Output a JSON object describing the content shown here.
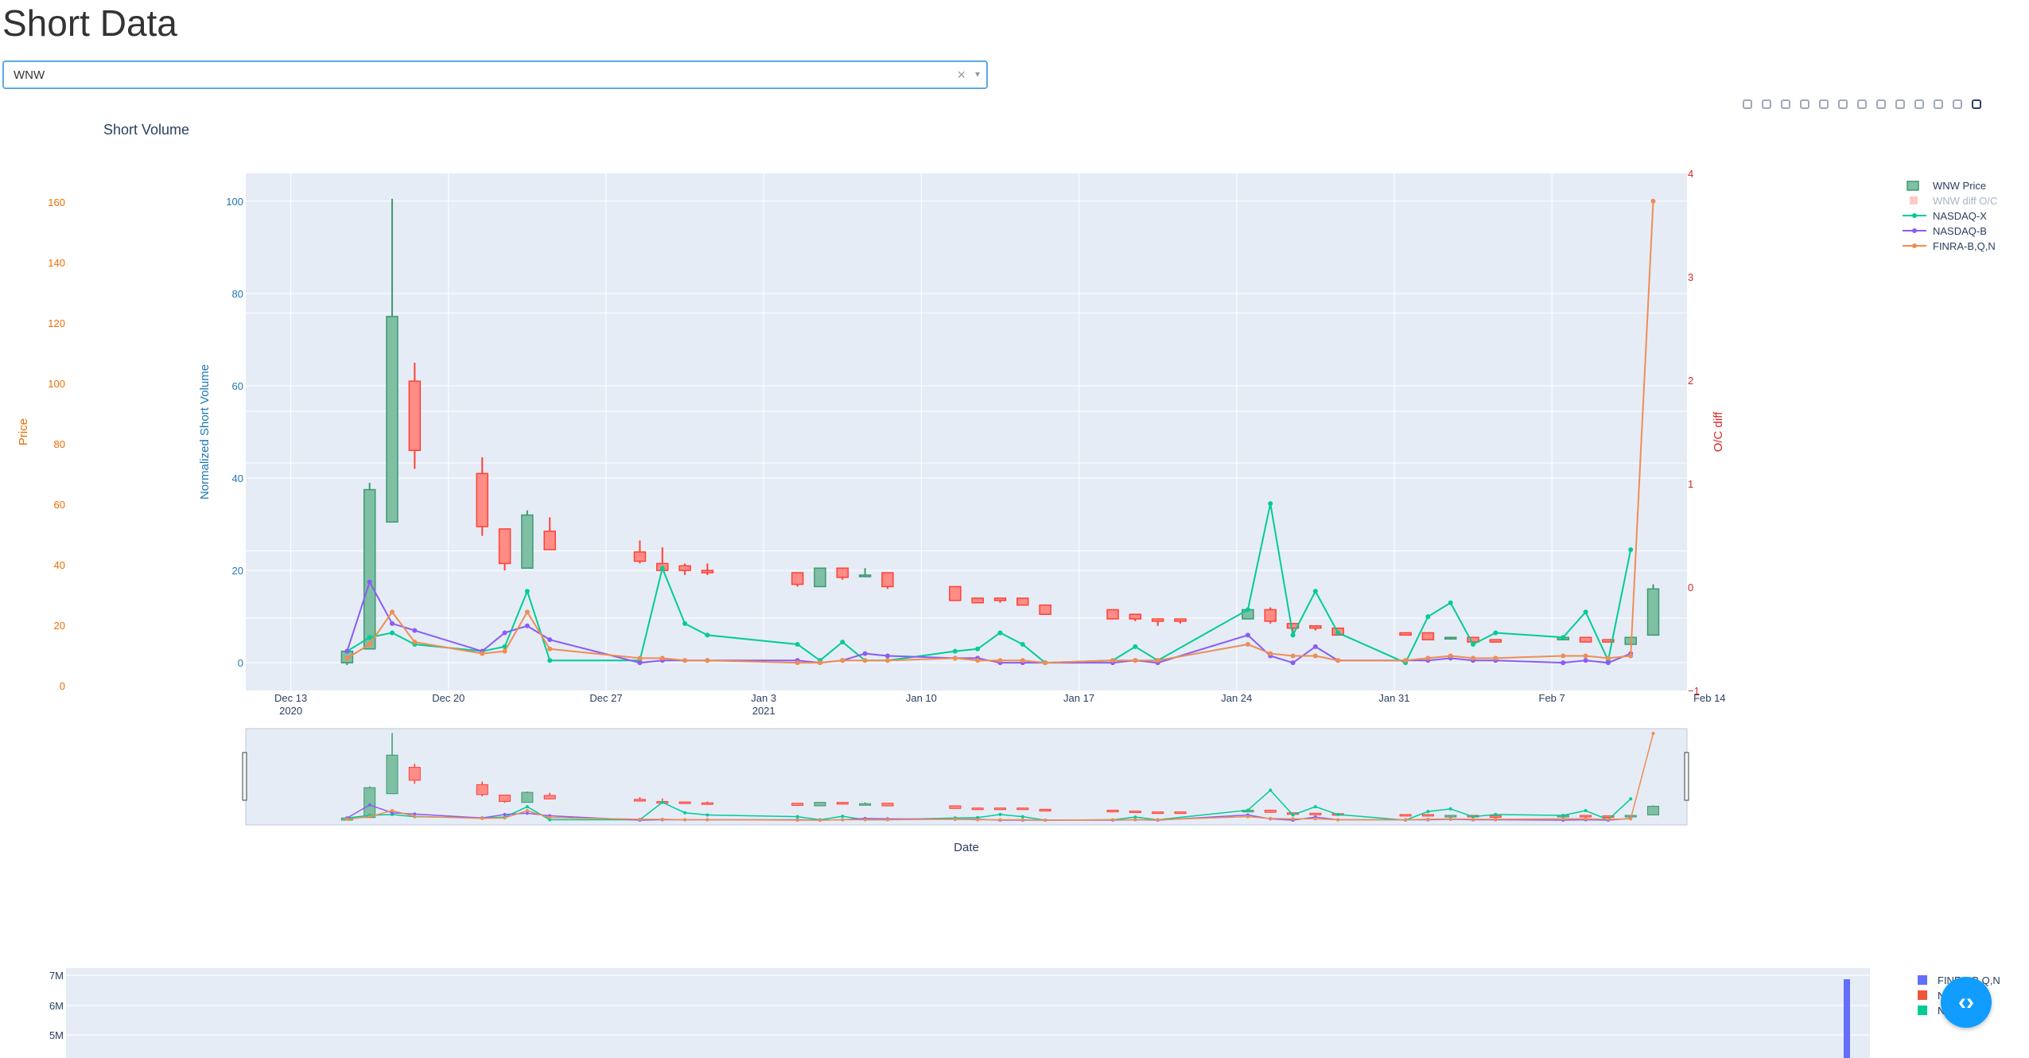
{
  "page": {
    "title": "Short Data"
  },
  "ticker_select": {
    "value": "WNW",
    "clear_icon": "×",
    "arrow_icon": "▾"
  },
  "modebar": [
    "camera-icon",
    "zoom-icon",
    "pan-icon",
    "box-select-icon",
    "lasso-select-icon",
    "zoom-in-icon",
    "zoom-out-icon",
    "autoscale-icon",
    "reset-axes-icon",
    "spike-lines-icon",
    "hover-closest-icon",
    "hover-compare-icon",
    "plotly-logo-icon"
  ],
  "chart_data": [
    {
      "type": "line",
      "title": "Short Volume",
      "xlabel": "Date",
      "ylabel": "Normalized Short Volume",
      "y2label": "Price",
      "y3label": "O/C diff",
      "xticks": [
        "Dec 13\n2020",
        "Dec 20",
        "Dec 27",
        "Jan 3\n2021",
        "Jan 10",
        "Jan 17",
        "Jan 24",
        "Jan 31",
        "Feb 7",
        "Feb 14"
      ],
      "ylim": [
        -6,
        106
      ],
      "yticks": [
        0,
        20,
        40,
        60,
        80,
        100
      ],
      "price_ylim": [
        -6,
        176
      ],
      "price_ticks": [
        0,
        20,
        40,
        60,
        80,
        100,
        120,
        140,
        160
      ],
      "ocdiff_ylim": [
        -1,
        4
      ],
      "ocdiff_ticks": [
        -1,
        0,
        1,
        2,
        3,
        4
      ],
      "legend": [
        "WNW Price",
        "WNW diff O/C",
        "NASDAQ-X",
        "NASDAQ-B",
        "FINRA-B,Q,N"
      ],
      "colors": {
        "up": "#3d9970",
        "down": "#ff4136",
        "nasdaq_x": "#00cc96",
        "nasdaq_b": "#8a5cf6",
        "finra": "#ef8d53",
        "grid_bg": "#e5ecf6"
      },
      "candles": [
        {
          "d": 2.5,
          "o": 0,
          "c": 2.5,
          "h": 3,
          "l": -0.5
        },
        {
          "d": 3.5,
          "o": 3,
          "c": 37.5,
          "h": 39,
          "l": 3
        },
        {
          "d": 4.5,
          "o": 30.5,
          "c": 75,
          "h": 100.5,
          "l": 30.5
        },
        {
          "d": 5.5,
          "o": 61,
          "c": 46,
          "h": 65,
          "l": 42
        },
        {
          "d": 8.5,
          "o": 41,
          "c": 29.5,
          "h": 44.5,
          "l": 27.5
        },
        {
          "d": 9.5,
          "o": 29,
          "c": 21.5,
          "h": 29,
          "l": 20
        },
        {
          "d": 10.5,
          "o": 20.5,
          "c": 32,
          "h": 33,
          "l": 20.5
        },
        {
          "d": 11.5,
          "o": 28.5,
          "c": 24.5,
          "h": 31.5,
          "l": 24.5
        },
        {
          "d": 15.5,
          "o": 24,
          "c": 22,
          "h": 26.5,
          "l": 21.5
        },
        {
          "d": 16.5,
          "o": 21.5,
          "c": 20,
          "h": 25,
          "l": 20
        },
        {
          "d": 17.5,
          "o": 21,
          "c": 20,
          "h": 21.5,
          "l": 19
        },
        {
          "d": 18.5,
          "o": 20,
          "c": 19.5,
          "h": 21.5,
          "l": 19
        },
        {
          "d": 22.5,
          "o": 19.5,
          "c": 17,
          "h": 19.5,
          "l": 16.5
        },
        {
          "d": 23.5,
          "o": 16.5,
          "c": 20.5,
          "h": 20.5,
          "l": 16.5
        },
        {
          "d": 24.5,
          "o": 20.5,
          "c": 18.5,
          "h": 20.5,
          "l": 18
        },
        {
          "d": 25.5,
          "o": 19,
          "c": 19,
          "h": 20.5,
          "l": 18.5
        },
        {
          "d": 26.5,
          "o": 19.5,
          "c": 16.5,
          "h": 19.5,
          "l": 16
        },
        {
          "d": 29.5,
          "o": 16.5,
          "c": 13.5,
          "h": 16.5,
          "l": 13.5
        },
        {
          "d": 30.5,
          "o": 14,
          "c": 13,
          "h": 14,
          "l": 13
        },
        {
          "d": 31.5,
          "o": 14,
          "c": 13.5,
          "h": 14,
          "l": 13
        },
        {
          "d": 32.5,
          "o": 14,
          "c": 12.5,
          "h": 14,
          "l": 12.5
        },
        {
          "d": 33.5,
          "o": 12.5,
          "c": 10.5,
          "h": 12.5,
          "l": 10.5
        },
        {
          "d": 36.5,
          "o": 11.5,
          "c": 9.5,
          "h": 11.5,
          "l": 9.5
        },
        {
          "d": 37.5,
          "o": 10.5,
          "c": 9.5,
          "h": 10.5,
          "l": 9
        },
        {
          "d": 38.5,
          "o": 9.5,
          "c": 9,
          "h": 9.5,
          "l": 8
        },
        {
          "d": 39.5,
          "o": 9.5,
          "c": 9,
          "h": 9.5,
          "l": 8.5
        },
        {
          "d": 42.5,
          "o": 9.5,
          "c": 11.5,
          "h": 12,
          "l": 9.5
        },
        {
          "d": 43.5,
          "o": 11.5,
          "c": 9,
          "h": 12,
          "l": 8.5
        },
        {
          "d": 44.5,
          "o": 8.5,
          "c": 7.5,
          "h": 8.5,
          "l": 6.5
        },
        {
          "d": 45.5,
          "o": 8,
          "c": 7.5,
          "h": 8,
          "l": 7
        },
        {
          "d": 46.5,
          "o": 7.5,
          "c": 6,
          "h": 7.5,
          "l": 6
        },
        {
          "d": 49.5,
          "o": 6.5,
          "c": 6,
          "h": 6.5,
          "l": 6
        },
        {
          "d": 50.5,
          "o": 6.5,
          "c": 5,
          "h": 6.5,
          "l": 5
        },
        {
          "d": 51.5,
          "o": 5.5,
          "c": 5.5,
          "h": 5.5,
          "l": 5
        },
        {
          "d": 52.5,
          "o": 5.5,
          "c": 4.5,
          "h": 5.5,
          "l": 4.5
        },
        {
          "d": 53.5,
          "o": 5,
          "c": 4.5,
          "h": 5,
          "l": 4.5
        },
        {
          "d": 56.5,
          "o": 5,
          "c": 5.5,
          "h": 5.5,
          "l": 5
        },
        {
          "d": 57.5,
          "o": 5.5,
          "c": 4.5,
          "h": 5.5,
          "l": 4.5
        },
        {
          "d": 58.5,
          "o": 5,
          "c": 4.5,
          "h": 5,
          "l": 4.5
        },
        {
          "d": 59.5,
          "o": 4,
          "c": 5.5,
          "h": 5.5,
          "l": 4
        },
        {
          "d": 60.5,
          "o": 6,
          "c": 16,
          "h": 17,
          "l": 6
        }
      ],
      "series": [
        {
          "name": "NASDAQ-X",
          "x": [
            2.5,
            3.5,
            4.5,
            5.5,
            8.5,
            9.5,
            10.5,
            11.5,
            15.5,
            16.5,
            17.5,
            18.5,
            22.5,
            23.5,
            24.5,
            25.5,
            26.5,
            29.5,
            30.5,
            31.5,
            32.5,
            33.5,
            36.5,
            37.5,
            38.5,
            42.5,
            43.5,
            44.5,
            45.5,
            46.5,
            49.5,
            50.5,
            51.5,
            52.5,
            53.5,
            56.5,
            57.5,
            58.5,
            59.5
          ],
          "y": [
            2.5,
            5.5,
            6.5,
            4,
            2.5,
            3.5,
            15.5,
            0.5,
            0.5,
            20.5,
            8.5,
            6,
            4,
            0.5,
            4.5,
            0.5,
            0.5,
            2.5,
            3,
            6.5,
            4,
            0,
            0.5,
            3.5,
            0.5,
            11.5,
            34.5,
            6,
            15.5,
            6.5,
            0,
            10,
            13,
            4,
            6.5,
            5.5,
            11,
            0.5,
            24.5
          ]
        },
        {
          "name": "NASDAQ-B",
          "x": [
            2.5,
            3.5,
            4.5,
            5.5,
            8.5,
            9.5,
            10.5,
            11.5,
            15.5,
            16.5,
            17.5,
            18.5,
            22.5,
            23.5,
            24.5,
            25.5,
            26.5,
            29.5,
            30.5,
            31.5,
            32.5,
            33.5,
            36.5,
            37.5,
            38.5,
            42.5,
            43.5,
            44.5,
            45.5,
            46.5,
            49.5,
            50.5,
            51.5,
            52.5,
            53.5,
            56.5,
            57.5,
            58.5,
            59.5
          ],
          "y": [
            2.5,
            17.5,
            8.5,
            7,
            2.5,
            6.5,
            8,
            5,
            0,
            0.5,
            0.5,
            0.5,
            0.5,
            0,
            0.5,
            2,
            1.5,
            1,
            1,
            0,
            0,
            0,
            0,
            0.5,
            0,
            6,
            1.5,
            0,
            3.5,
            0.5,
            0.5,
            0.5,
            1,
            0.5,
            0.5,
            0,
            0.5,
            0,
            2
          ]
        },
        {
          "name": "FINRA-B,Q,N",
          "x": [
            2.5,
            3.5,
            4.5,
            5.5,
            8.5,
            9.5,
            10.5,
            11.5,
            15.5,
            16.5,
            17.5,
            18.5,
            22.5,
            23.5,
            24.5,
            25.5,
            26.5,
            29.5,
            30.5,
            31.5,
            32.5,
            33.5,
            36.5,
            37.5,
            38.5,
            42.5,
            43.5,
            44.5,
            45.5,
            46.5,
            49.5,
            50.5,
            51.5,
            52.5,
            53.5,
            56.5,
            57.5,
            58.5,
            59.5,
            60.5
          ],
          "y": [
            1,
            4,
            11,
            4.5,
            2,
            2.5,
            11,
            3,
            1,
            1,
            0.5,
            0.5,
            0,
            0,
            0.5,
            0.5,
            0.5,
            1,
            0.5,
            0.5,
            0.5,
            0,
            0.5,
            0.5,
            0.5,
            4,
            2,
            1.5,
            1.5,
            0.5,
            0.5,
            1,
            1.5,
            1,
            1,
            1.5,
            1.5,
            1,
            1.5,
            100
          ]
        }
      ]
    },
    {
      "type": "bar",
      "yticks": [
        "7M",
        "6M",
        "5M"
      ],
      "legend": [
        "FINRA-B,Q,N",
        "N",
        "N"
      ],
      "colors": {
        "finra": "#636efa",
        "red": "#ef553b",
        "green": "#00cc96"
      }
    }
  ]
}
